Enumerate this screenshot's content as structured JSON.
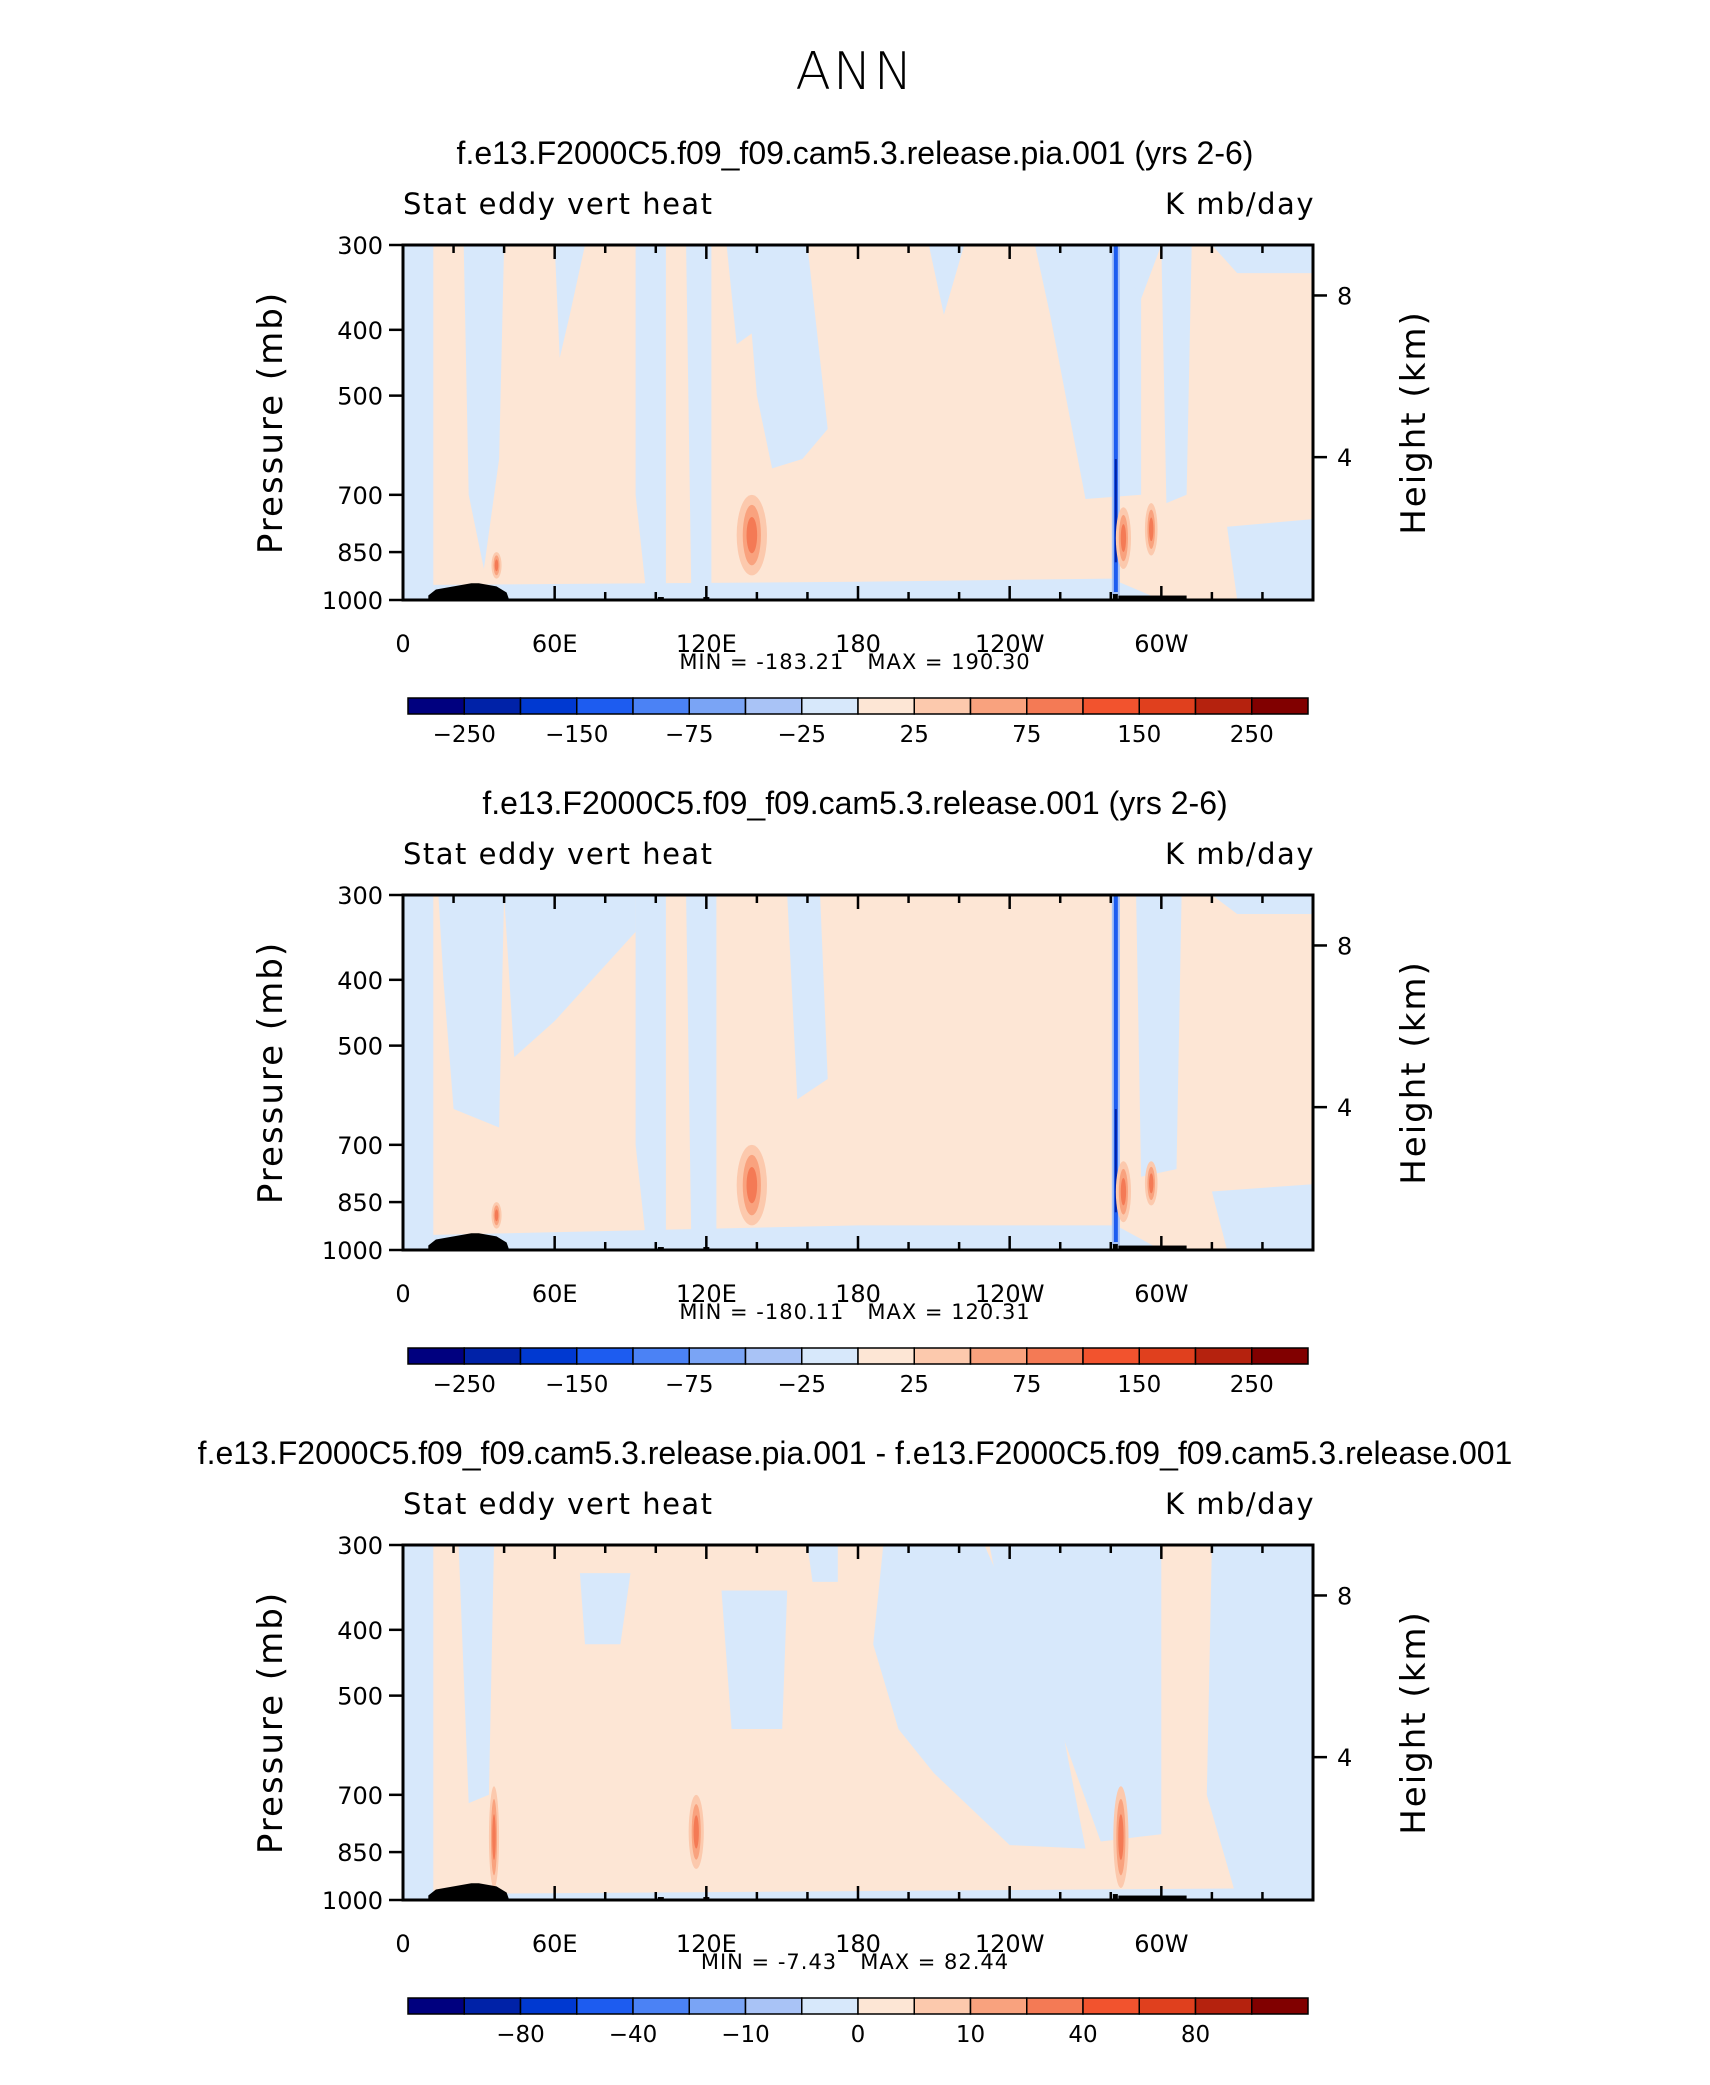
{
  "page_title": "ANN",
  "chart_data": [
    {
      "type": "heatmap",
      "title": "f.e13.F2000C5.f09_f09.cam5.3.release.pia.001 (yrs 2-6)",
      "left_label": "Stat eddy vert heat",
      "right_label": "K mb/day",
      "ylabel": "Pressure (mb)",
      "ylabel_right": "Height (km)",
      "y_ticks": [
        "300",
        "400",
        "500",
        "700",
        "850",
        "1000"
      ],
      "y_values": [
        300,
        400,
        500,
        700,
        850,
        1000
      ],
      "y_right_ticks": [
        "8",
        "4"
      ],
      "x_ticks": [
        "0",
        "60E",
        "120E",
        "180",
        "120W",
        "60W"
      ],
      "x_values": [
        0,
        60,
        120,
        180,
        240,
        300
      ],
      "xlim": [
        0,
        360
      ],
      "ylim": [
        1000,
        300
      ],
      "min_label": "MIN = -183.21",
      "max_label": "MAX = 190.30",
      "colorbar_levels": [
        -300,
        -250,
        -200,
        -150,
        -100,
        -75,
        -50,
        -25,
        0,
        25,
        50,
        75,
        100,
        150,
        200,
        250,
        300
      ],
      "colorbar_labels": [
        "-250",
        "-150",
        "-75",
        "-25",
        "25",
        "75",
        "150",
        "250"
      ]
    },
    {
      "type": "heatmap",
      "title": "f.e13.F2000C5.f09_f09.cam5.3.release.001 (yrs 2-6)",
      "left_label": "Stat eddy vert heat",
      "right_label": "K mb/day",
      "ylabel": "Pressure (mb)",
      "ylabel_right": "Height (km)",
      "y_ticks": [
        "300",
        "400",
        "500",
        "700",
        "850",
        "1000"
      ],
      "y_values": [
        300,
        400,
        500,
        700,
        850,
        1000
      ],
      "y_right_ticks": [
        "8",
        "4"
      ],
      "x_ticks": [
        "0",
        "60E",
        "120E",
        "180",
        "120W",
        "60W"
      ],
      "x_values": [
        0,
        60,
        120,
        180,
        240,
        300
      ],
      "xlim": [
        0,
        360
      ],
      "ylim": [
        1000,
        300
      ],
      "min_label": "MIN = -180.11",
      "max_label": "MAX = 120.31",
      "colorbar_levels": [
        -300,
        -250,
        -200,
        -150,
        -100,
        -75,
        -50,
        -25,
        0,
        25,
        50,
        75,
        100,
        150,
        200,
        250,
        300
      ],
      "colorbar_labels": [
        "-250",
        "-150",
        "-75",
        "-25",
        "25",
        "75",
        "150",
        "250"
      ]
    },
    {
      "type": "heatmap",
      "title": "f.e13.F2000C5.f09_f09.cam5.3.release.pia.001 - f.e13.F2000C5.f09_f09.cam5.3.release.001",
      "left_label": "Stat eddy vert heat",
      "right_label": "K mb/day",
      "ylabel": "Pressure (mb)",
      "ylabel_right": "Height (km)",
      "y_ticks": [
        "300",
        "400",
        "500",
        "700",
        "850",
        "1000"
      ],
      "y_values": [
        300,
        400,
        500,
        700,
        850,
        1000
      ],
      "y_right_ticks": [
        "8",
        "4"
      ],
      "x_ticks": [
        "0",
        "60E",
        "120E",
        "180",
        "120W",
        "60W"
      ],
      "x_values": [
        0,
        60,
        120,
        180,
        240,
        300
      ],
      "xlim": [
        0,
        360
      ],
      "ylim": [
        1000,
        300
      ],
      "min_label": "MIN =   -7.43",
      "max_label": "MAX =   82.44",
      "colorbar_levels": [
        -100,
        -80,
        -60,
        -40,
        -20,
        -10,
        -5,
        -1,
        0,
        1,
        5,
        10,
        20,
        40,
        60,
        80,
        100
      ],
      "colorbar_labels": [
        "-80",
        "-40",
        "-10",
        "0",
        "10",
        "40",
        "80"
      ]
    }
  ],
  "colors": {
    "palette": [
      "#00007f",
      "#0022a8",
      "#0039d1",
      "#1d5cf0",
      "#4b82f5",
      "#7aa4f5",
      "#a9c3f6",
      "#d7e8fb",
      "#fde6d5",
      "#fcc9ad",
      "#f9a27e",
      "#f47a55",
      "#f2532e",
      "#e0401e",
      "#b5220e",
      "#810000"
    ],
    "pos_fill": "#fde6d5",
    "neg_fill": "#d7e8fb",
    "terrain": "#000000"
  }
}
